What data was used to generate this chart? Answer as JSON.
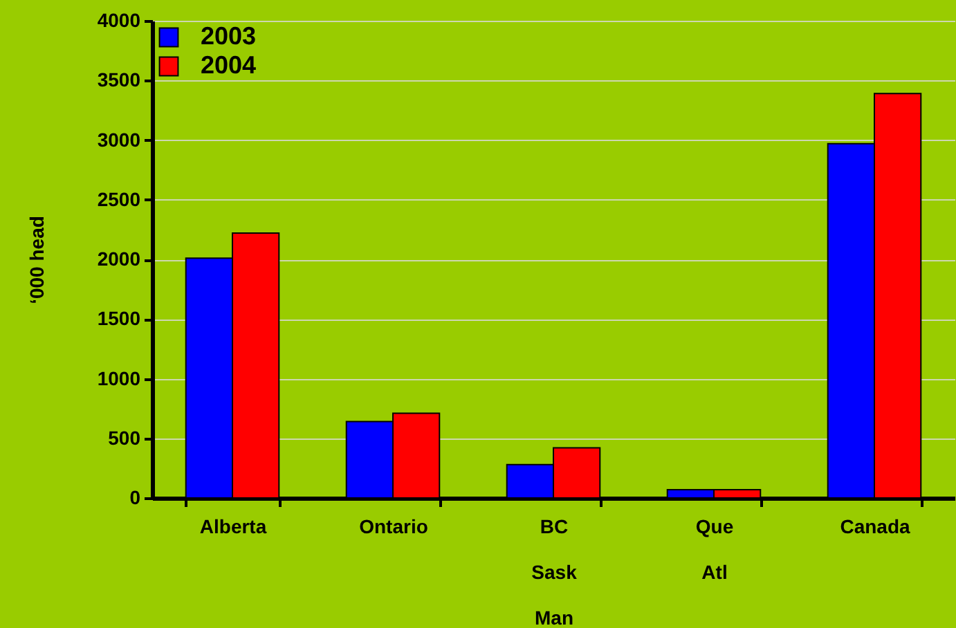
{
  "chart_data": {
    "type": "bar",
    "ylabel": "‘000 head",
    "categories": [
      "Alberta",
      "Ontario",
      "BC\nSask\nMan",
      "Que\nAtl",
      "Canada"
    ],
    "series": [
      {
        "name": "2003",
        "color": "#0000ff",
        "values": [
          2010,
          640,
          280,
          70,
          2970
        ]
      },
      {
        "name": "2004",
        "color": "#ff0000",
        "values": [
          2220,
          710,
          420,
          70,
          3390
        ]
      }
    ],
    "ylim": [
      0,
      4000
    ],
    "yticks": [
      0,
      500,
      1000,
      1500,
      2000,
      2500,
      3000,
      3500,
      4000
    ],
    "grid": "y",
    "legend": "top left"
  }
}
